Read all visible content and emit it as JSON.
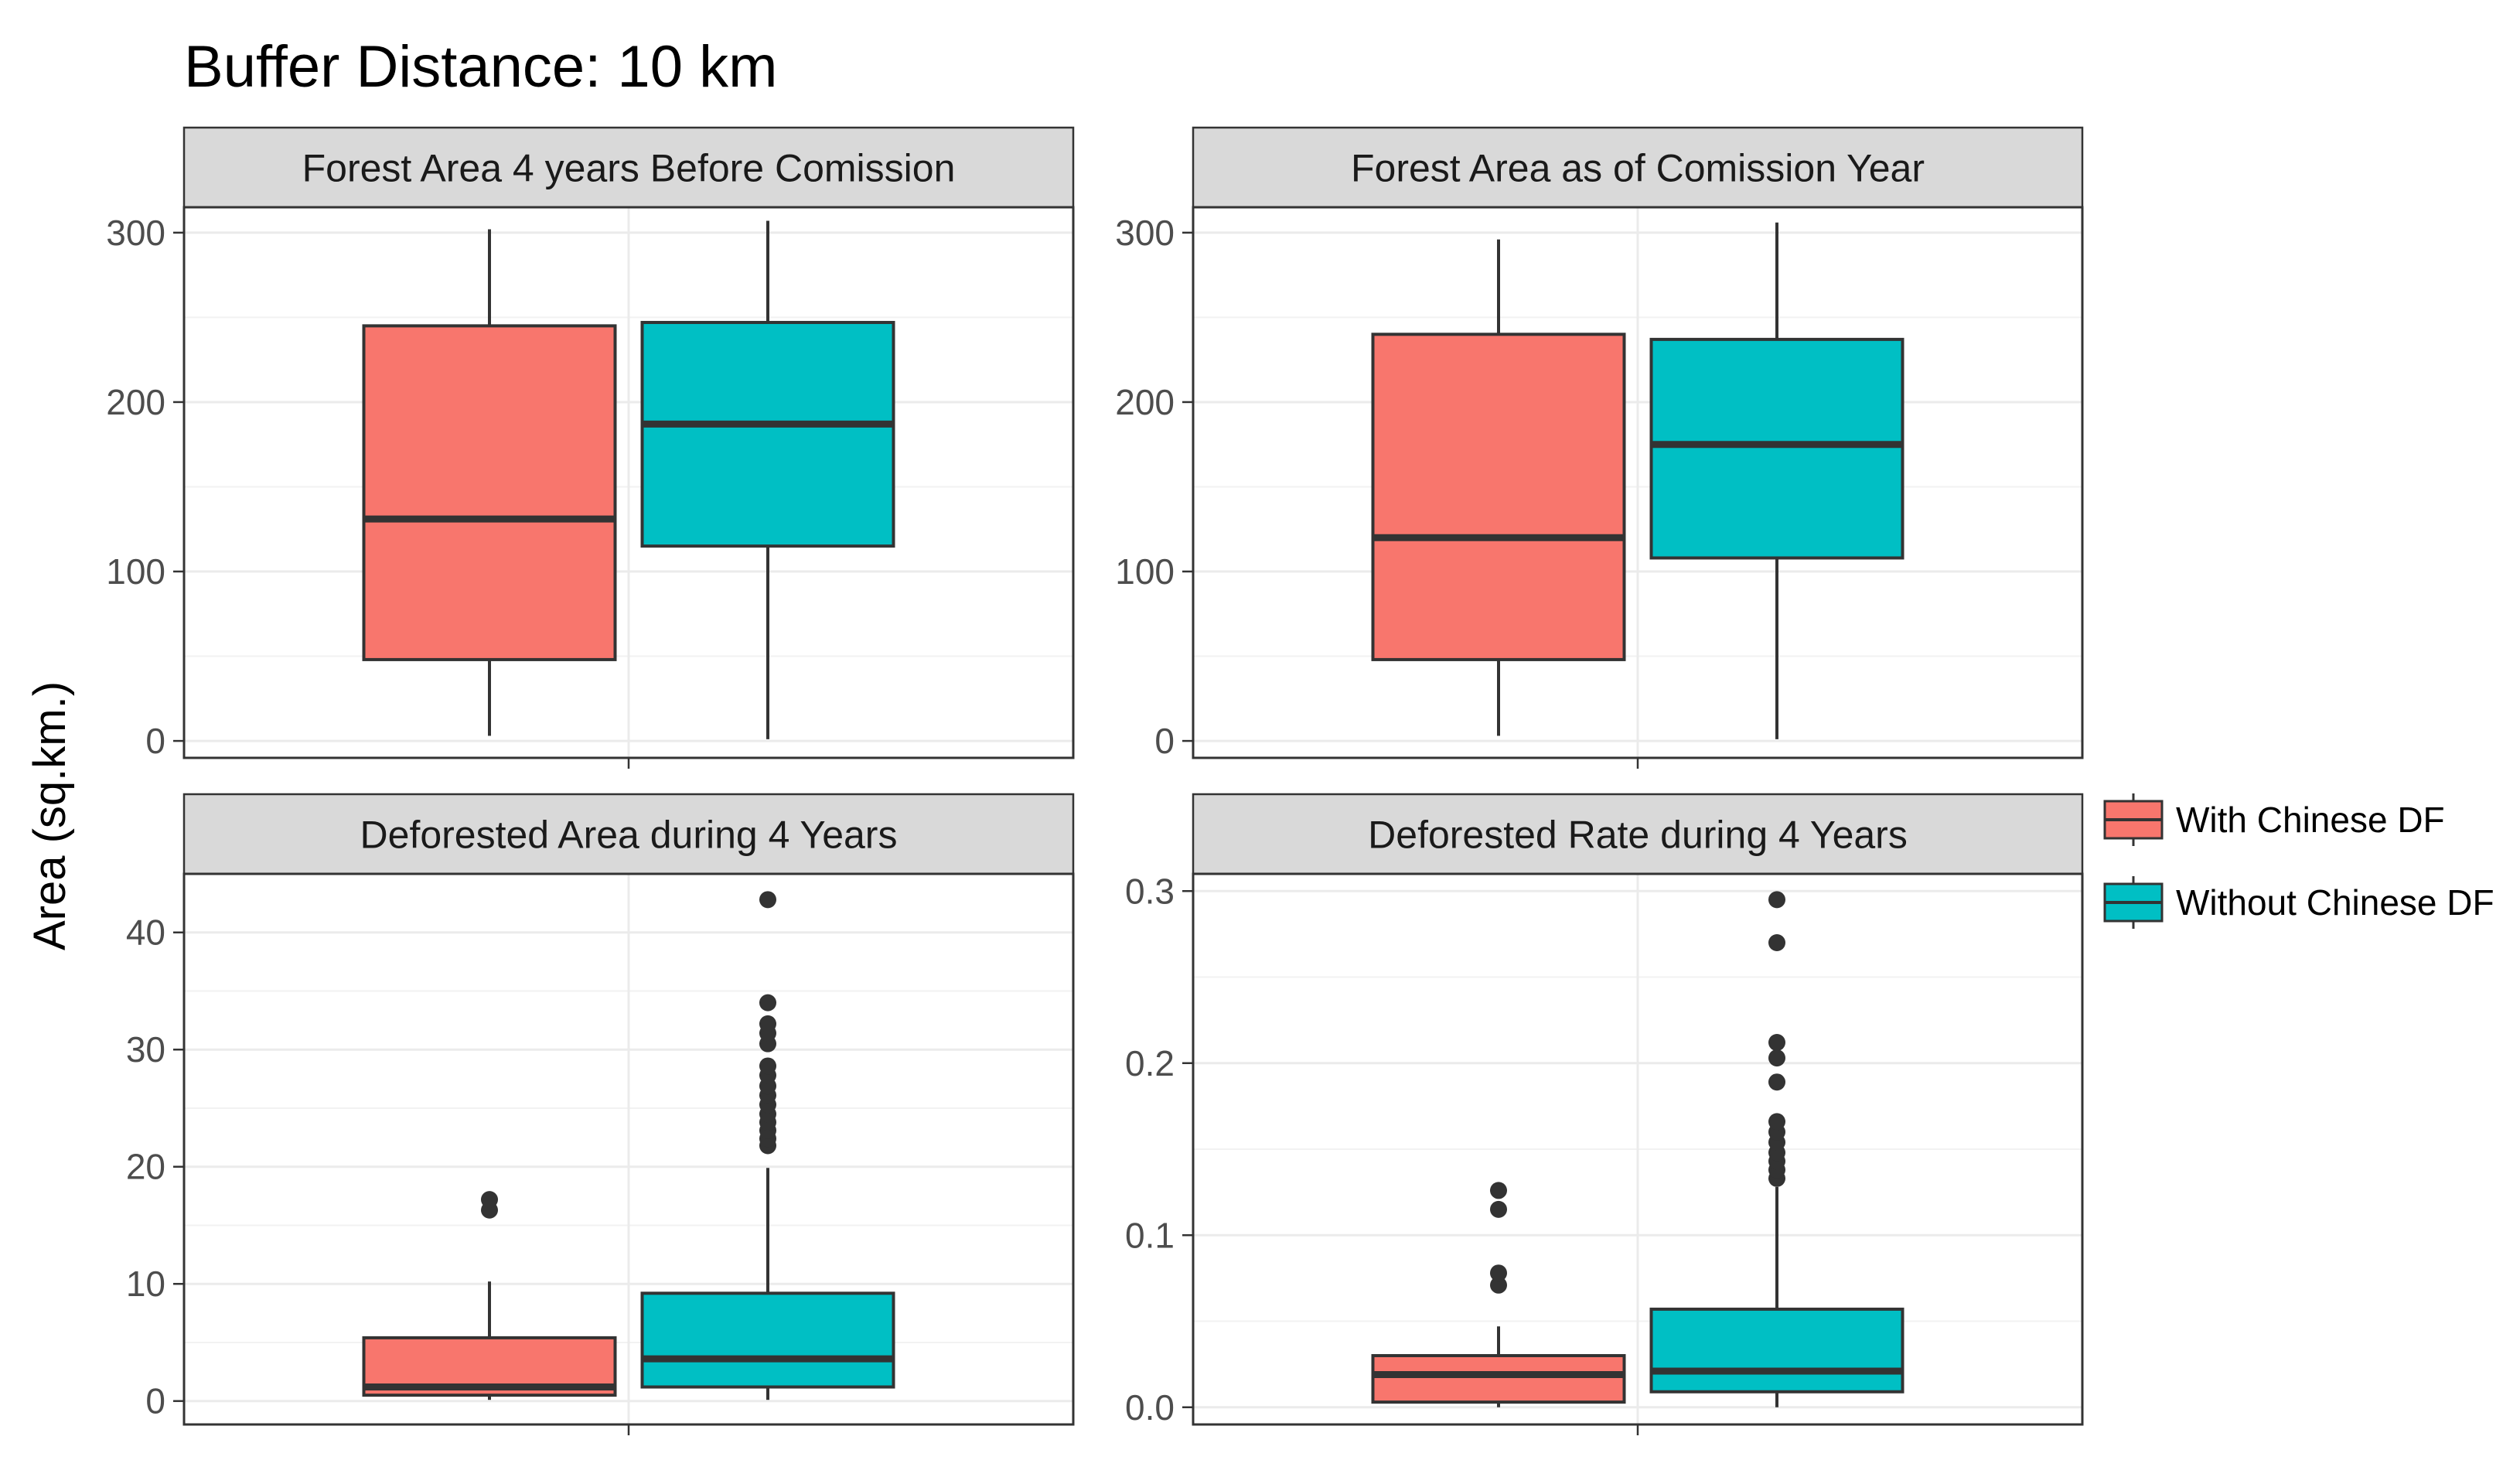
{
  "chart_data": {
    "type": "boxplot",
    "title": "Buffer Distance: 10 km",
    "ylabel": "Area (sq.km.)",
    "xlabel": "",
    "groups": [
      "With Chinese DF",
      "Without Chinese DF"
    ],
    "legend": {
      "position": "right",
      "entries": [
        {
          "label": "With Chinese DF",
          "color": "#F8766D"
        },
        {
          "label": "Without Chinese DF",
          "color": "#00BFC4"
        }
      ]
    },
    "panels": [
      {
        "title": "Forest Area 4 years Before Comission",
        "ylim": [
          -10,
          315
        ],
        "yticks": [
          0,
          100,
          200,
          300
        ],
        "ytick_labels": [
          "0",
          "100",
          "200",
          "300"
        ],
        "boxes": [
          {
            "group": "With Chinese DF",
            "min": 3,
            "q1": 48,
            "median": 131,
            "q3": 245,
            "max": 302,
            "outliers": []
          },
          {
            "group": "Without Chinese DF",
            "min": 1,
            "q1": 115,
            "median": 187,
            "q3": 247,
            "max": 307,
            "outliers": []
          }
        ]
      },
      {
        "title": "Forest Area as of Comission Year",
        "ylim": [
          -10,
          315
        ],
        "yticks": [
          0,
          100,
          200,
          300
        ],
        "ytick_labels": [
          "0",
          "100",
          "200",
          "300"
        ],
        "boxes": [
          {
            "group": "With Chinese DF",
            "min": 3,
            "q1": 48,
            "median": 120,
            "q3": 240,
            "max": 296,
            "outliers": []
          },
          {
            "group": "Without Chinese DF",
            "min": 1,
            "q1": 108,
            "median": 175,
            "q3": 237,
            "max": 306,
            "outliers": []
          }
        ]
      },
      {
        "title": "Deforested Area during 4 Years",
        "ylim": [
          -2,
          45
        ],
        "yticks": [
          0,
          10,
          20,
          30,
          40
        ],
        "ytick_labels": [
          "0",
          "10",
          "20",
          "30",
          "40"
        ],
        "boxes": [
          {
            "group": "With Chinese DF",
            "min": 0.1,
            "q1": 0.5,
            "median": 1.2,
            "q3": 5.4,
            "max": 10.2,
            "outliers": [
              16.3,
              17.2
            ]
          },
          {
            "group": "Without Chinese DF",
            "min": 0.1,
            "q1": 1.2,
            "median": 3.6,
            "q3": 9.2,
            "max": 19.9,
            "outliers": [
              21.8,
              22.4,
              23.1,
              23.8,
              24.5,
              25.3,
              26.1,
              26.9,
              27.8,
              28.6,
              30.5,
              31.4,
              32.2,
              34.0,
              42.8
            ]
          }
        ]
      },
      {
        "title": "Deforested Rate during 4 Years",
        "ylim": [
          -0.01,
          0.31
        ],
        "yticks": [
          0.0,
          0.1,
          0.2,
          0.3
        ],
        "ytick_labels": [
          "0.0",
          "0.1",
          "0.2",
          "0.3"
        ],
        "boxes": [
          {
            "group": "With Chinese DF",
            "min": 0.0,
            "q1": 0.003,
            "median": 0.019,
            "q3": 0.03,
            "max": 0.047,
            "outliers": [
              0.071,
              0.078,
              0.115,
              0.126
            ]
          },
          {
            "group": "Without Chinese DF",
            "min": 0.0,
            "q1": 0.009,
            "median": 0.021,
            "q3": 0.057,
            "max": 0.128,
            "outliers": [
              0.133,
              0.138,
              0.143,
              0.148,
              0.154,
              0.16,
              0.166,
              0.189,
              0.203,
              0.212,
              0.27,
              0.295
            ]
          }
        ]
      }
    ]
  }
}
